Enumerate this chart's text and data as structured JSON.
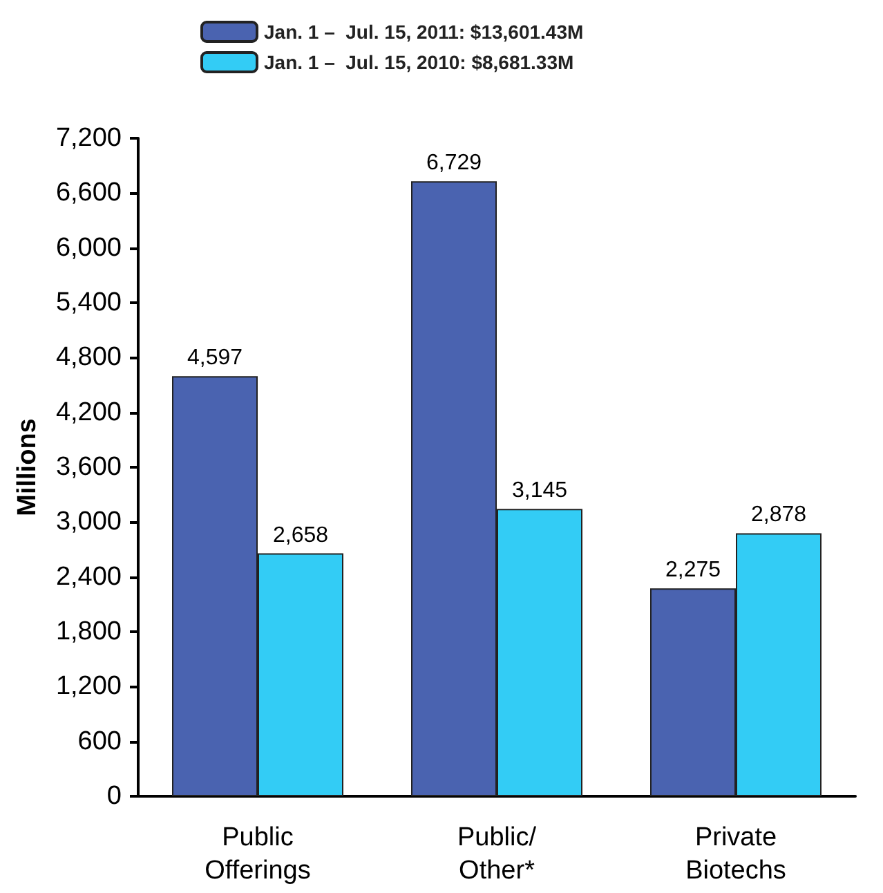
{
  "chart_data": {
    "type": "bar",
    "ylabel": "Millions",
    "categories": [
      "Public\nOfferings",
      "Public/\nOther*",
      "Private\nBiotechs"
    ],
    "series": [
      {
        "name": "Jan. 1 –  Jul. 15, 2011: $13,601.43M",
        "color": "#4a63b0",
        "values": [
          4597,
          6729,
          2275
        ],
        "value_labels": [
          "4,597",
          "6,729",
          "2,275"
        ]
      },
      {
        "name": "Jan. 1 –  Jul. 15, 2010: $8,681.33M",
        "color": "#33ccf5",
        "values": [
          2658,
          3145,
          2878
        ],
        "value_labels": [
          "2,658",
          "3,145",
          "2,878"
        ]
      }
    ],
    "ylim": [
      0,
      7200
    ],
    "yticks": [
      {
        "value": 0,
        "label": "0"
      },
      {
        "value": 600,
        "label": "600"
      },
      {
        "value": 1200,
        "label": "1,200"
      },
      {
        "value": 1800,
        "label": "1,800"
      },
      {
        "value": 2400,
        "label": "2,400"
      },
      {
        "value": 3000,
        "label": "3,000"
      },
      {
        "value": 3600,
        "label": "3,600"
      },
      {
        "value": 4200,
        "label": "4,200"
      },
      {
        "value": 4800,
        "label": "4,800"
      },
      {
        "value": 5400,
        "label": "5,400"
      },
      {
        "value": 6000,
        "label": "6,000"
      },
      {
        "value": 6600,
        "label": "6,600"
      },
      {
        "value": 7200,
        "label": "7,200"
      }
    ],
    "grid": false,
    "legend": "top"
  }
}
